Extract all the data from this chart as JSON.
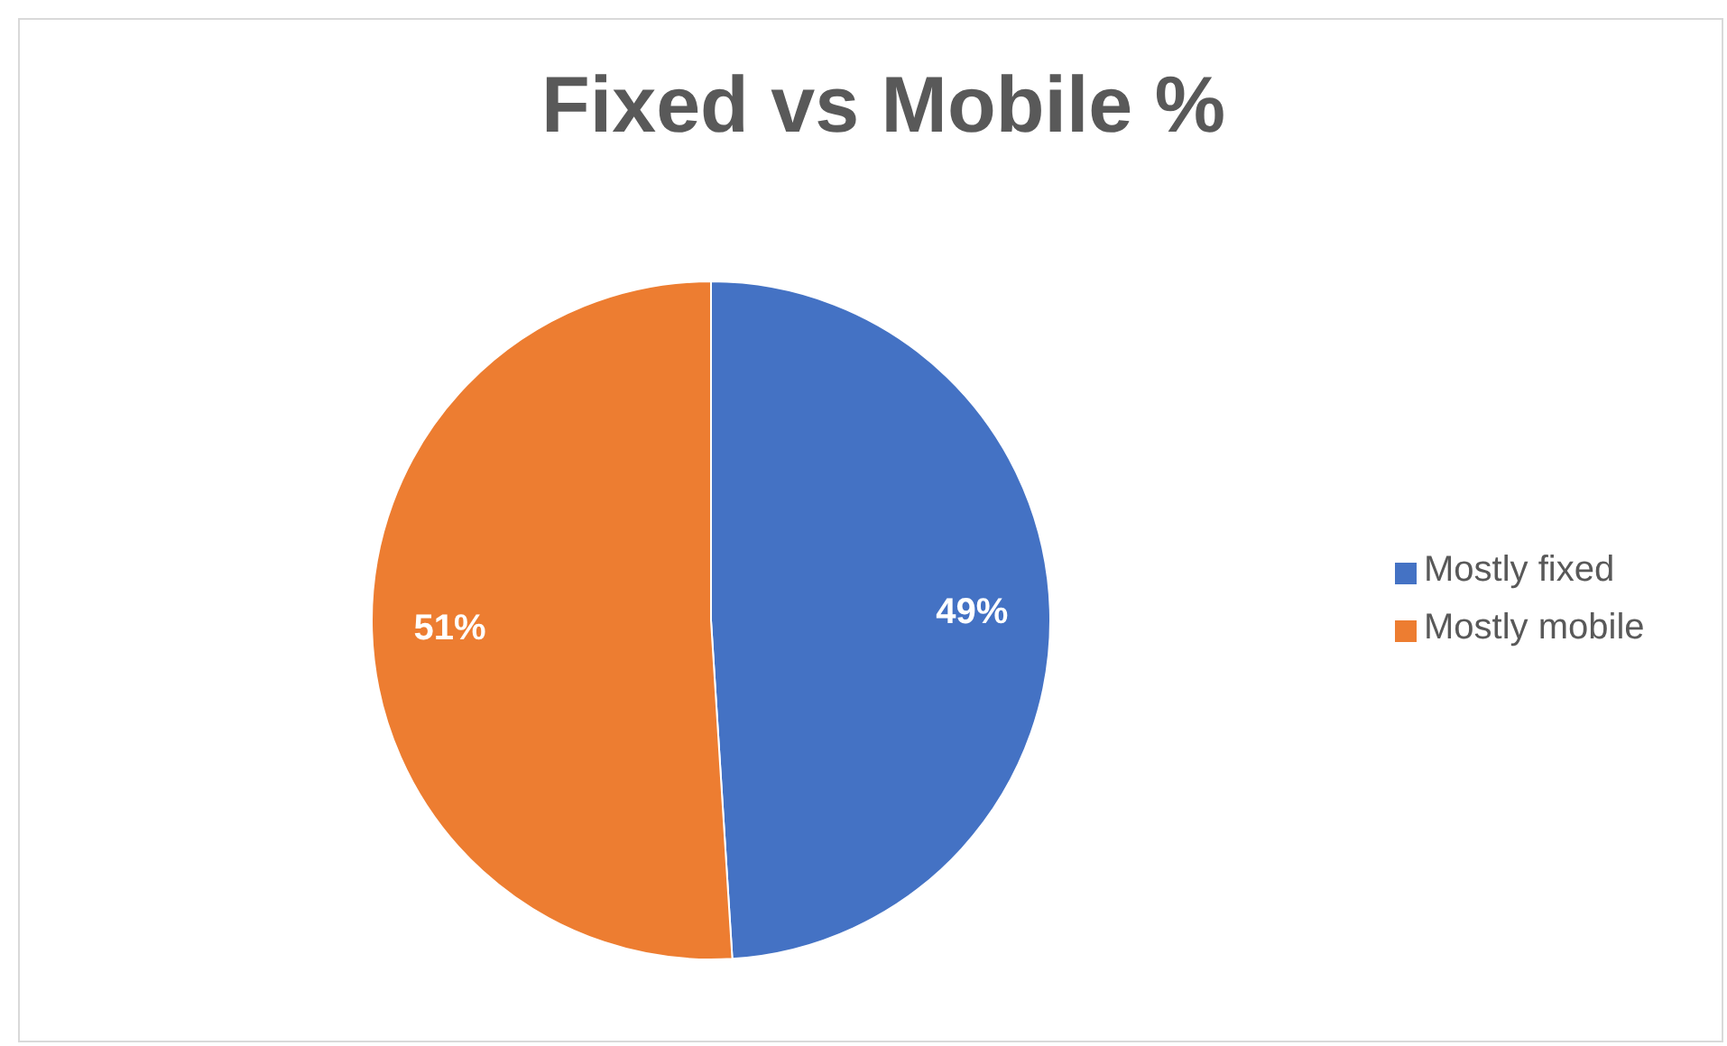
{
  "chart_data": {
    "type": "pie",
    "title": "Fixed vs Mobile %",
    "categories": [
      "Mostly fixed",
      "Mostly mobile"
    ],
    "values": [
      49,
      51
    ],
    "colors": [
      "#4472c4",
      "#ed7d31"
    ],
    "value_labels": [
      "49%",
      "51%"
    ],
    "legend": "right"
  }
}
